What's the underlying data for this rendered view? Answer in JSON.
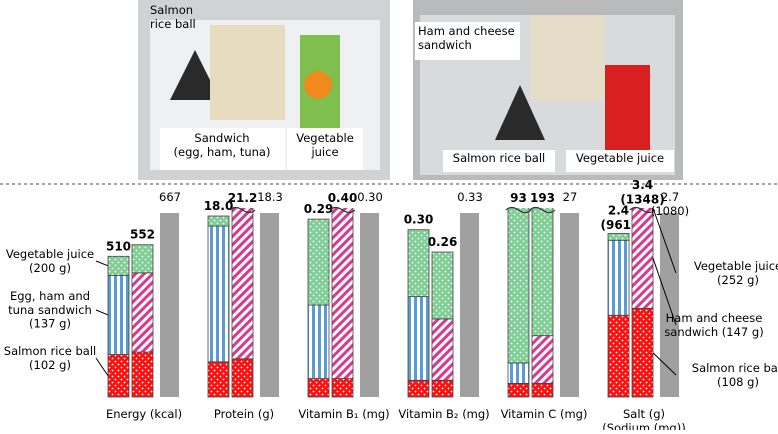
{
  "photos": [
    {
      "captions": [
        "Salmon\nrice ball",
        "Sandwich\n(egg, ham, tuna)",
        "Vegetable\njuice"
      ]
    },
    {
      "captions": [
        "Ham and cheese\nsandwich",
        "Salmon rice ball",
        "Vegetable juice"
      ]
    }
  ],
  "chart_data": {
    "type": "stacked-bar",
    "categories": [
      "Energy (kcal)",
      "Protein (g)",
      "Vitamin B₁ (mg)",
      "Vitamin B₂ (mg)",
      "Vitamin C (mg)",
      "Salt (g)\n(Sodium (mg))"
    ],
    "series": [
      {
        "name": "Salmon rice ball\n(102 g)",
        "set": 0,
        "color": "#ff1010",
        "pattern": "dots",
        "values": [
          154,
          3.5,
          0.03,
          0.03,
          2,
          1.2
        ]
      },
      {
        "name": "Egg, ham and\ntuna sandwich\n(137 g)",
        "set": 0,
        "color": "#5b9bd5",
        "pattern": "vlines",
        "values": [
          287,
          13.5,
          0.12,
          0.15,
          3,
          1.1
        ]
      },
      {
        "name": "Vegetable juice\n(200 g)",
        "set": 0,
        "color": "#7fcf95",
        "pattern": "dots",
        "values": [
          69,
          1.0,
          0.14,
          0.12,
          88,
          0.1
        ]
      },
      {
        "name": "Salmon rice ball\n(108 g)",
        "set": 1,
        "color": "#ff1010",
        "pattern": "dots",
        "values": [
          163,
          3.8,
          0.03,
          0.03,
          2,
          1.3
        ]
      },
      {
        "name": "Ham and cheese\nsandwich (147 g)",
        "set": 1,
        "color": "#d6398f",
        "pattern": "diag",
        "values": [
          287,
          15.6,
          0.33,
          0.11,
          7,
          1.6
        ]
      },
      {
        "name": "Vegetable juice\n(252 g)",
        "set": 1,
        "color": "#7fcf95",
        "pattern": "dots",
        "values": [
          102,
          1.8,
          0.04,
          0.12,
          184,
          0.5
        ]
      }
    ],
    "totals": [
      {
        "values": [
          510,
          18.0,
          0.29,
          0.3,
          93,
          2.4
        ],
        "value_labels": [
          "510",
          "18.0",
          "0.29",
          "0.30",
          "93",
          "2.4\n(961)"
        ]
      },
      {
        "values": [
          552,
          21.2,
          0.4,
          0.26,
          193,
          3.4
        ],
        "value_labels": [
          "552",
          "21.2",
          "0.40",
          "0.26",
          "193",
          "3.4\n(1348)"
        ]
      }
    ],
    "reference": {
      "color": "#a0a0a0",
      "values": [
        667,
        18.3,
        0.3,
        0.33,
        27,
        2.7
      ],
      "value_labels": [
        "667",
        "18.3",
        "0.30",
        "0.33",
        "27",
        "2.7\n(1080)"
      ]
    }
  }
}
